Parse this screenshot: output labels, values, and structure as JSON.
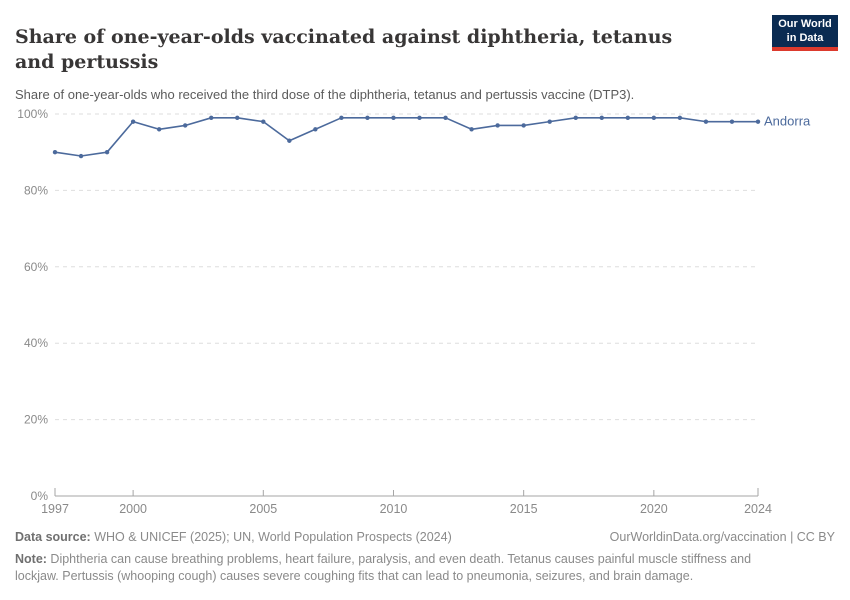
{
  "header": {
    "title": "Share of one-year-olds vaccinated against diphtheria, tetanus and pertussis",
    "subtitle": "Share of one-year-olds who received the third dose of the diphtheria, tetanus and pertussis vaccine (DTP3).",
    "logo": {
      "line1": "Our World",
      "line2": "in Data",
      "bg_color": "#0a2b52",
      "accent_color": "#dc3a2d"
    }
  },
  "chart_data": {
    "type": "line",
    "title": "Share of one-year-olds vaccinated against diphtheria, tetanus and pertussis",
    "x": [
      1997,
      1998,
      1999,
      2000,
      2001,
      2002,
      2003,
      2004,
      2005,
      2006,
      2007,
      2008,
      2009,
      2010,
      2011,
      2012,
      2013,
      2014,
      2015,
      2016,
      2017,
      2018,
      2019,
      2020,
      2021,
      2022,
      2023,
      2024
    ],
    "series": [
      {
        "name": "Andorra",
        "color": "#4c6a9c",
        "values": [
          90,
          89,
          90,
          98,
          96,
          97,
          99,
          99,
          98,
          93,
          96,
          99,
          99,
          99,
          99,
          99,
          96,
          97,
          97,
          98,
          99,
          99,
          99,
          99,
          99,
          98,
          98,
          98
        ]
      }
    ],
    "ylim": [
      0,
      100
    ],
    "unit": "%",
    "y_ticks": [
      {
        "value": 0,
        "label": "0%"
      },
      {
        "value": 20,
        "label": "20%"
      },
      {
        "value": 40,
        "label": "40%"
      },
      {
        "value": 60,
        "label": "60%"
      },
      {
        "value": 80,
        "label": "80%"
      },
      {
        "value": 100,
        "label": "100%"
      }
    ],
    "x_ticks": [
      1997,
      2000,
      2005,
      2010,
      2015,
      2020,
      2024
    ],
    "grid": "horizontal-dashed",
    "legend_position": "end-of-line-label"
  },
  "footer": {
    "source_label": "Data source:",
    "source_text": " WHO & UNICEF (2025); UN, World Population Prospects (2024)",
    "citation": "OurWorldinData.org/vaccination | CC BY",
    "note_label": "Note:",
    "note_text": " Diphtheria can cause breathing problems, heart failure, paralysis, and even death. Tetanus causes painful muscle stiffness and lockjaw. Pertussis (whooping cough) causes severe coughing fits that can lead to pneumonia, seizures, and brain damage."
  }
}
